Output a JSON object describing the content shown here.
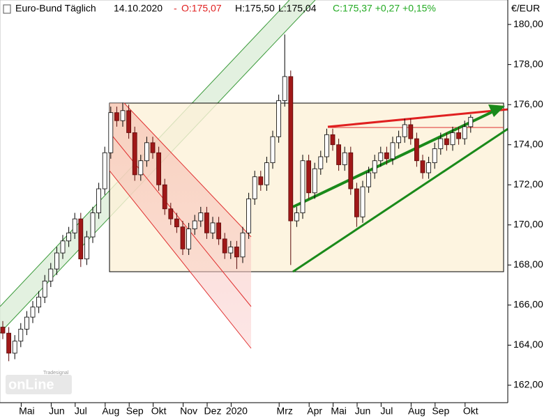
{
  "chart_data": {
    "type": "candlestick",
    "header": {
      "name": "Euro-Bund Täglich",
      "date": "14.10.2020",
      "separator": "-",
      "open": "O:175,07",
      "high": "H:175,50",
      "low": "L:175,04",
      "close": "C:175,37 +0,27 +0,15%"
    },
    "y_unit": "€/EUR",
    "watermark": {
      "brand": "Tradesignal",
      "logo": "onLine"
    },
    "up_color": "#ffffff",
    "down_color": "#a01818",
    "categories": [
      null,
      null,
      null,
      null,
      "Mai",
      null,
      null,
      null,
      null,
      "Jun",
      null,
      null,
      null,
      "Jul",
      null,
      null,
      null,
      null,
      "Aug",
      null,
      null,
      null,
      "Sep",
      null,
      null,
      null,
      "Okt",
      null,
      null,
      null,
      null,
      "Nov",
      null,
      null,
      null,
      "Dez",
      null,
      null,
      null,
      "2020",
      null,
      null,
      null,
      null,
      null,
      null,
      null,
      "Mrz",
      null,
      null,
      null,
      null,
      "Apr",
      null,
      null,
      null,
      "Mai",
      null,
      null,
      null,
      "Jun",
      null,
      null,
      null,
      "Jul",
      null,
      null,
      null,
      null,
      "Aug",
      null,
      null,
      null,
      "Sep",
      null,
      null,
      null,
      null,
      "Okt"
    ],
    "open": [
      164.9,
      164.6,
      163.6,
      164.2,
      164.8,
      165.4,
      165.9,
      166.4,
      167.2,
      167.8,
      168.6,
      169.2,
      169.6,
      170.3,
      168.3,
      169.4,
      170.6,
      171.8,
      173.6,
      175.6,
      175.2,
      175.7,
      174.6,
      172.5,
      173.2,
      174.1,
      173.6,
      172.0,
      170.8,
      170.3,
      169.9,
      168.8,
      169.8,
      170.2,
      170.6,
      169.6,
      170.1,
      169.3,
      168.6,
      168.9,
      168.4,
      169.6,
      171.3,
      172.4,
      172.0,
      173.1,
      174.4,
      176.2,
      177.4,
      170.2,
      170.6,
      173.2,
      171.6,
      172.8,
      173.4,
      174.5,
      174.0,
      173.0,
      173.6,
      171.8,
      170.4,
      171.9,
      172.6,
      173.2,
      173.6,
      173.3,
      174.1,
      174.4,
      175.0,
      174.3,
      173.2,
      172.6,
      173.1,
      173.8,
      174.3,
      174.0,
      174.6,
      174.3,
      174.9
    ],
    "high": [
      165.2,
      164.9,
      164.5,
      165.1,
      165.7,
      166.2,
      166.7,
      167.5,
      168.1,
      168.9,
      169.5,
      169.9,
      170.6,
      170.6,
      169.7,
      170.9,
      172.1,
      173.9,
      175.9,
      175.9,
      176.1,
      176.0,
      174.9,
      173.5,
      174.4,
      174.4,
      173.9,
      172.3,
      171.1,
      170.6,
      170.2,
      170.1,
      170.5,
      170.9,
      170.9,
      170.4,
      170.4,
      169.6,
      169.2,
      169.2,
      169.9,
      171.6,
      172.7,
      172.7,
      173.4,
      174.7,
      176.5,
      179.5,
      177.7,
      170.9,
      173.5,
      173.5,
      173.1,
      173.7,
      174.8,
      174.8,
      174.3,
      173.9,
      173.9,
      172.1,
      172.2,
      172.9,
      173.5,
      173.9,
      173.9,
      174.4,
      174.7,
      175.3,
      175.3,
      174.6,
      173.5,
      173.4,
      174.1,
      174.6,
      174.6,
      174.9,
      174.9,
      175.2,
      175.5
    ],
    "low": [
      164.3,
      163.2,
      163.3,
      163.9,
      164.5,
      165.1,
      165.6,
      166.1,
      166.9,
      167.5,
      168.3,
      168.9,
      169.3,
      167.9,
      168.0,
      169.1,
      170.3,
      171.5,
      173.3,
      174.9,
      174.9,
      174.3,
      172.2,
      172.2,
      172.9,
      173.3,
      171.7,
      170.5,
      170.0,
      169.6,
      168.5,
      168.5,
      169.5,
      169.9,
      169.3,
      169.3,
      169.0,
      168.3,
      168.3,
      167.8,
      168.1,
      169.3,
      171.0,
      171.7,
      171.7,
      172.8,
      174.1,
      175.9,
      168.0,
      169.9,
      170.3,
      171.3,
      171.3,
      172.5,
      173.1,
      173.7,
      172.7,
      172.7,
      171.5,
      169.9,
      170.1,
      171.6,
      172.3,
      172.9,
      173.0,
      173.0,
      173.8,
      174.1,
      174.0,
      172.9,
      172.3,
      172.3,
      172.8,
      173.5,
      173.7,
      173.7,
      174.0,
      174.0,
      174.6
    ],
    "close": [
      164.6,
      163.6,
      164.2,
      164.8,
      165.4,
      165.9,
      166.4,
      167.2,
      167.8,
      168.6,
      169.2,
      169.6,
      170.3,
      168.3,
      169.4,
      170.6,
      171.8,
      173.6,
      175.6,
      175.2,
      175.7,
      174.6,
      172.5,
      173.2,
      174.1,
      173.6,
      172.0,
      170.8,
      170.3,
      169.9,
      168.8,
      169.8,
      170.2,
      170.6,
      169.6,
      170.1,
      169.3,
      168.6,
      168.9,
      168.4,
      169.6,
      171.3,
      172.4,
      172.0,
      173.1,
      174.4,
      176.2,
      177.4,
      170.2,
      170.6,
      173.2,
      171.6,
      172.8,
      173.4,
      174.5,
      174.0,
      173.0,
      173.6,
      171.8,
      170.4,
      171.9,
      172.6,
      173.2,
      173.6,
      173.3,
      174.1,
      174.4,
      175.0,
      174.3,
      173.2,
      172.6,
      173.1,
      173.8,
      174.3,
      174.0,
      174.6,
      174.3,
      174.9,
      175.37
    ],
    "ylim": [
      161.13,
      181.22
    ],
    "yticks": [
      {
        "value": 162,
        "label": "162,00"
      },
      {
        "value": 164,
        "label": "164,00"
      },
      {
        "value": 166,
        "label": "166,00"
      },
      {
        "value": 168,
        "label": "168,00"
      },
      {
        "value": 170,
        "label": "170,00"
      },
      {
        "value": 172,
        "label": "172,00"
      },
      {
        "value": 174,
        "label": "174,00"
      },
      {
        "value": 176,
        "label": "176,00"
      },
      {
        "value": 178,
        "label": "178,00"
      },
      {
        "value": 180,
        "label": "180,00"
      }
    ]
  }
}
